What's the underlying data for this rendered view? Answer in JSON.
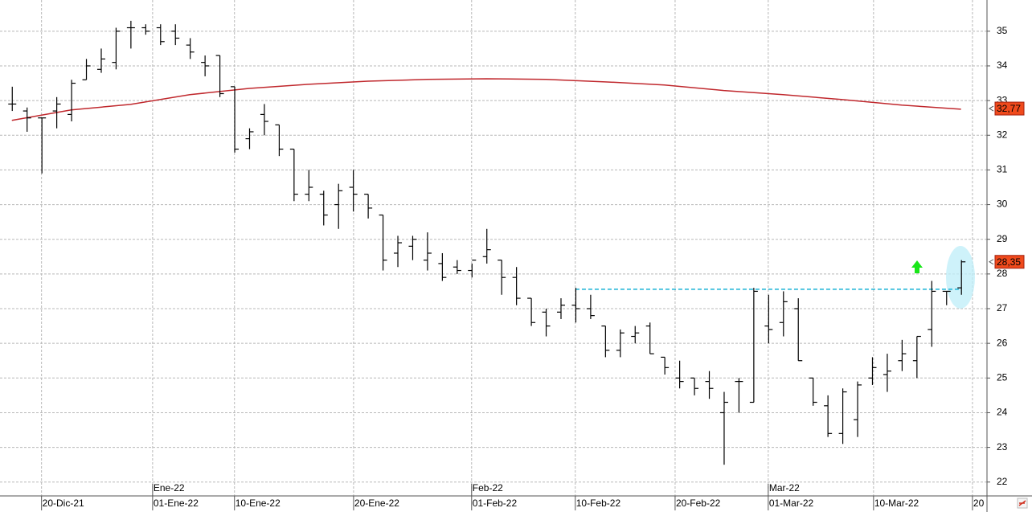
{
  "chart_data": {
    "type": "ohlc",
    "color": "#000000",
    "grid": true,
    "x": [
      0,
      1,
      2,
      3,
      4,
      5,
      6,
      7,
      8,
      9,
      10,
      11,
      12,
      13,
      14,
      15,
      16,
      17,
      18,
      19,
      20,
      21,
      22,
      23,
      24,
      25,
      26,
      27,
      28,
      29,
      30,
      31,
      32,
      33,
      34,
      35,
      36,
      37,
      38,
      39,
      40,
      41,
      42,
      43,
      44,
      45,
      46,
      47,
      48,
      49,
      50,
      51,
      52,
      53,
      54,
      55,
      56,
      57,
      58,
      59,
      60,
      61,
      62,
      63,
      64
    ],
    "open": [
      32.9,
      32.7,
      32.5,
      32.7,
      32.6,
      33.6,
      33.9,
      34.1,
      35.1,
      35.1,
      35.1,
      35.0,
      34.6,
      34.1,
      34.3,
      33.4,
      31.9,
      32.6,
      32.3,
      31.6,
      30.3,
      30.3,
      30.0,
      30.5,
      30.3,
      29.7,
      28.6,
      28.8,
      28.4,
      28.3,
      28.2,
      28.1,
      28.5,
      28.4,
      27.9,
      27.3,
      26.9,
      26.9,
      27.1,
      27.0,
      26.5,
      25.8,
      26.2,
      26.5,
      25.6,
      25.0,
      25.0,
      24.9,
      24.0,
      24.9,
      24.3,
      26.5,
      26.6,
      27.0,
      25.0,
      24.2,
      23.4,
      23.8,
      25.0,
      25.1,
      25.5,
      25.5,
      26.4,
      27.5,
      27.6
    ],
    "high": [
      33.4,
      32.8,
      32.5,
      33.1,
      33.6,
      34.2,
      34.5,
      35.1,
      35.3,
      35.2,
      35.2,
      35.2,
      34.8,
      34.3,
      34.3,
      33.4,
      32.2,
      32.9,
      32.3,
      31.6,
      31.0,
      30.4,
      30.6,
      31.0,
      30.3,
      29.7,
      29.1,
      29.1,
      29.2,
      28.6,
      28.4,
      28.3,
      29.3,
      28.4,
      28.2,
      27.3,
      27.0,
      27.3,
      27.6,
      27.4,
      26.5,
      26.4,
      26.5,
      26.6,
      25.6,
      25.5,
      25.0,
      25.2,
      24.6,
      25.0,
      27.6,
      27.4,
      27.5,
      27.3,
      25.0,
      24.5,
      24.7,
      24.9,
      25.6,
      25.7,
      26.1,
      26.2,
      27.8,
      27.5,
      28.4
    ],
    "low": [
      32.7,
      32.1,
      30.9,
      32.2,
      32.4,
      33.6,
      33.8,
      33.9,
      34.5,
      34.9,
      34.6,
      34.6,
      34.2,
      33.7,
      33.1,
      31.5,
      31.6,
      32.0,
      31.4,
      30.1,
      30.1,
      29.4,
      29.3,
      29.8,
      29.6,
      28.1,
      28.2,
      28.4,
      28.1,
      27.8,
      28.0,
      27.9,
      28.3,
      27.4,
      27.1,
      26.5,
      26.2,
      26.7,
      26.6,
      26.7,
      25.6,
      25.6,
      26.0,
      25.7,
      25.1,
      24.7,
      24.5,
      24.4,
      22.5,
      24.0,
      24.3,
      26.0,
      26.2,
      25.5,
      24.2,
      23.3,
      23.1,
      23.3,
      24.8,
      24.6,
      25.2,
      25.0,
      25.9,
      27.1,
      27.4
    ],
    "close": [
      32.9,
      32.5,
      32.5,
      32.9,
      33.5,
      34.0,
      34.2,
      35.0,
      35.1,
      35.0,
      34.7,
      34.8,
      34.4,
      34.0,
      33.2,
      31.6,
      32.1,
      32.4,
      31.6,
      30.3,
      30.5,
      29.7,
      30.4,
      30.3,
      29.9,
      28.4,
      28.9,
      29.0,
      28.6,
      27.9,
      28.1,
      28.4,
      28.7,
      27.9,
      27.3,
      26.6,
      26.5,
      27.1,
      27.0,
      26.8,
      25.8,
      26.3,
      26.3,
      25.7,
      25.3,
      24.9,
      24.7,
      24.7,
      24.3,
      24.9,
      27.5,
      26.4,
      27.2,
      25.5,
      24.3,
      23.4,
      24.6,
      24.8,
      25.3,
      25.2,
      25.7,
      26.2,
      27.5,
      27.5,
      28.35
    ],
    "xlim": [
      -0.8,
      65.75
    ],
    "ylim": [
      21.6,
      35.9
    ],
    "yticks": [
      22,
      23,
      24,
      25,
      26,
      27,
      28,
      29,
      30,
      31,
      32,
      33,
      34,
      35
    ],
    "xticks": [
      {
        "value": 2.0,
        "label": "20-Dic-21"
      },
      {
        "value": 9.49,
        "label": "01-Ene-22"
      },
      {
        "value": 15.01,
        "label": "10-Ene-22"
      },
      {
        "value": 23.04,
        "label": "20-Ene-22"
      },
      {
        "value": 31.0,
        "label": "01-Feb-22"
      },
      {
        "value": 37.99,
        "label": "10-Feb-22"
      },
      {
        "value": 44.72,
        "label": "20-Feb-22"
      },
      {
        "value": 51.0,
        "label": "01-Mar-22"
      },
      {
        "value": 58.1,
        "label": "10-Mar-22"
      },
      {
        "value": 64.77,
        "label": "20"
      }
    ],
    "month_ticks": [
      {
        "value": 9.49,
        "label": "Ene-22"
      },
      {
        "value": 31.0,
        "label": "Feb-22"
      },
      {
        "value": 51.0,
        "label": "Mar-22"
      }
    ],
    "moving_average": {
      "color": "#c0282d",
      "x": [
        0,
        4,
        8,
        12,
        16,
        20,
        24,
        28,
        32,
        36,
        40,
        44,
        48,
        52,
        56,
        60,
        64
      ],
      "values": [
        32.43,
        32.73,
        32.89,
        33.17,
        33.35,
        33.47,
        33.56,
        33.61,
        33.63,
        33.61,
        33.54,
        33.45,
        33.29,
        33.17,
        33.03,
        32.87,
        32.75
      ]
    },
    "resistance": {
      "value": 27.56,
      "x": [
        38,
        64
      ],
      "color": "#1ab2d6"
    },
    "price_labels": [
      {
        "value": 32.77,
        "label": "32,77",
        "color": "#f04a1c"
      },
      {
        "value": 28.35,
        "label": "28,35",
        "color": "#f04a1c"
      }
    ]
  }
}
